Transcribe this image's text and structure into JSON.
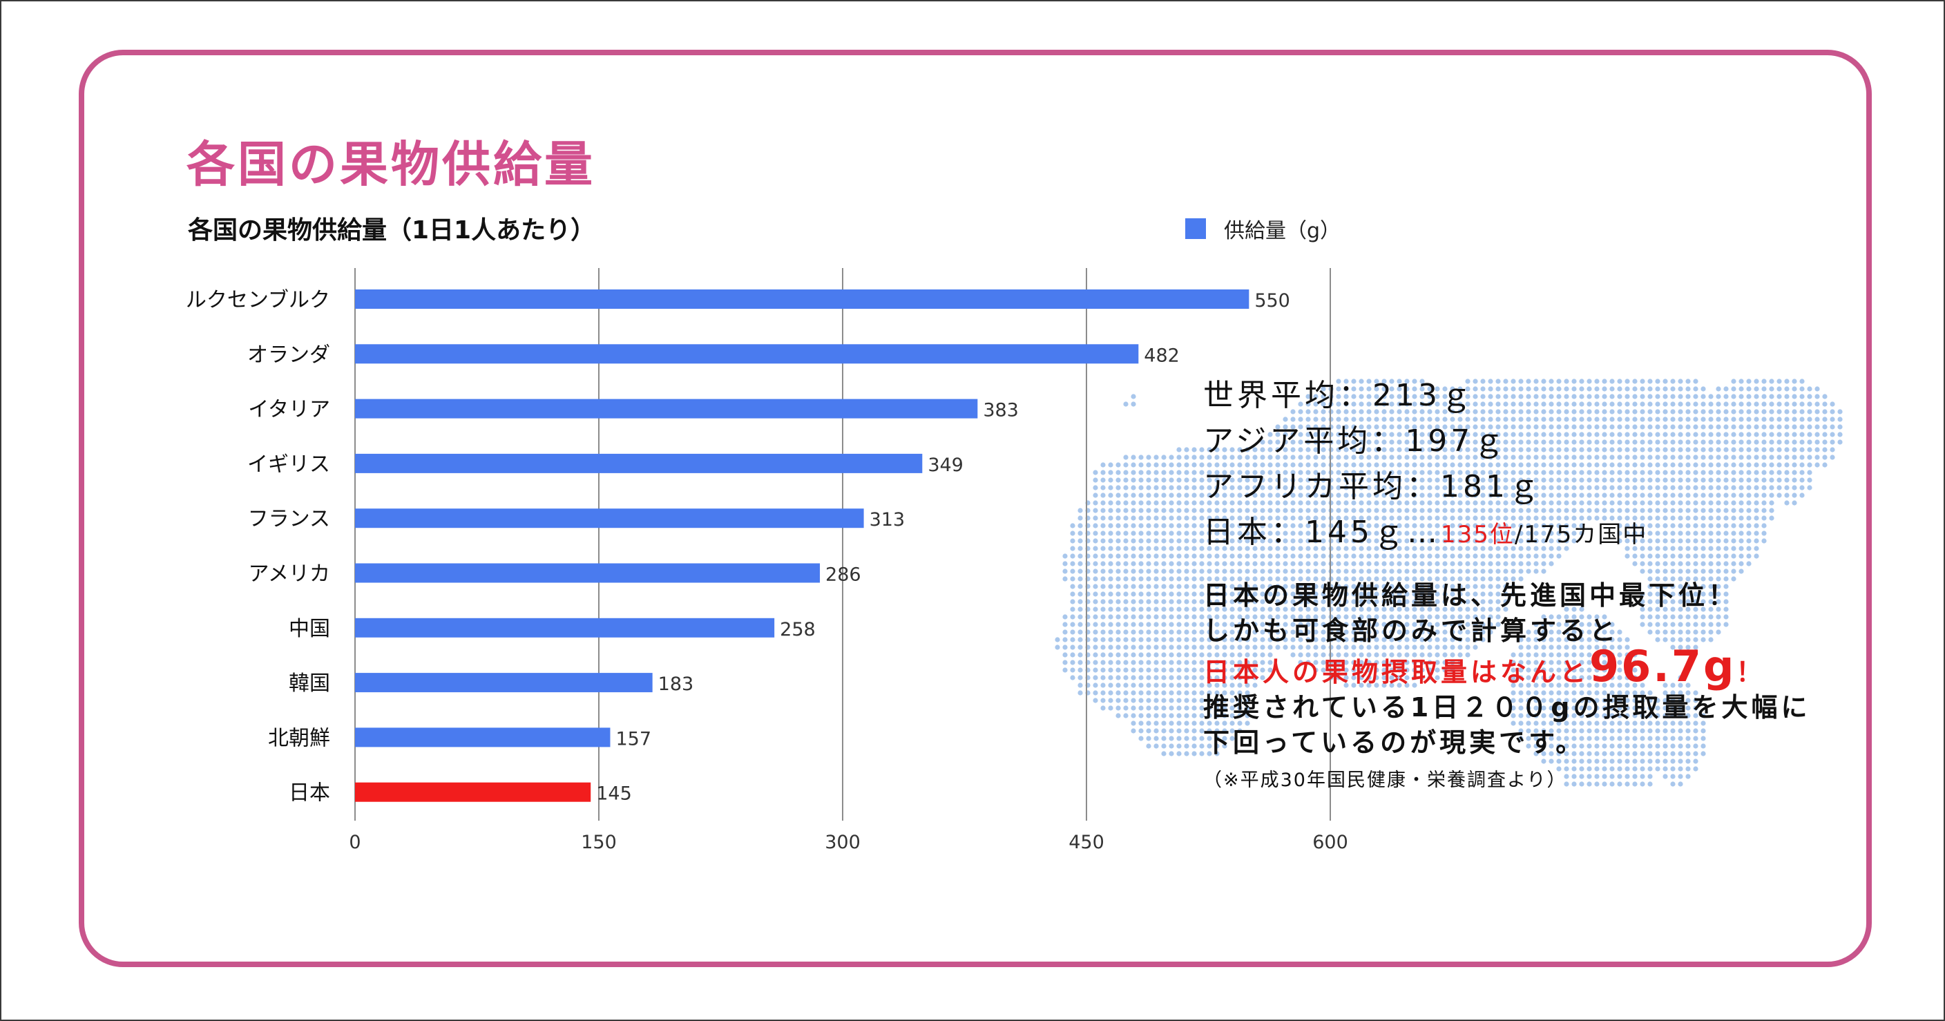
{
  "main_title": "各国の果物供給量",
  "chart_data": {
    "type": "bar",
    "orientation": "horizontal",
    "title": "各国の果物供給量（1日1人あたり）",
    "legend": "供給量（g）",
    "legend_position": "top-right",
    "categories": [
      "ルクセンブルク",
      "オランダ",
      "イタリア",
      "イギリス",
      "フランス",
      "アメリカ",
      "中国",
      "韓国",
      "北朝鮮",
      "日本"
    ],
    "values": [
      550,
      482,
      383,
      349,
      313,
      286,
      258,
      183,
      157,
      145
    ],
    "colors": [
      "#4a7bef",
      "#4a7bef",
      "#4a7bef",
      "#4a7bef",
      "#4a7bef",
      "#4a7bef",
      "#4a7bef",
      "#4a7bef",
      "#4a7bef",
      "#f21d1d"
    ],
    "xticks": [
      0,
      150,
      300,
      450,
      600
    ],
    "xlim": [
      0,
      600
    ],
    "grid": true
  },
  "panel": {
    "world_avg": "世界平均：213ｇ",
    "asia_avg": "アジア平均：197ｇ",
    "africa_avg": "アフリカ平均：181ｇ",
    "japan_prefix": "日本：145ｇ…",
    "japan_rank": "135位",
    "japan_suffix": "/175カ国中",
    "line1": "日本の果物供給量は、先進国中最下位！",
    "line2": "しかも可食部のみで計算すると",
    "line3_red": "日本人の果物摂取量はなんと",
    "line3_big": "96.7g",
    "line3_end": "！",
    "line4": "推奨されている1日２００gの摂取量を大幅に",
    "line5": "下回っているのが現実です。",
    "note": "（※平成30年国民健康・栄養調査より）"
  },
  "colors": {
    "accent": "#c8558c",
    "title": "#d2508e",
    "bar": "#4a7bef",
    "highlight": "#f21d1d",
    "map_dots": "#a9c7ec"
  }
}
